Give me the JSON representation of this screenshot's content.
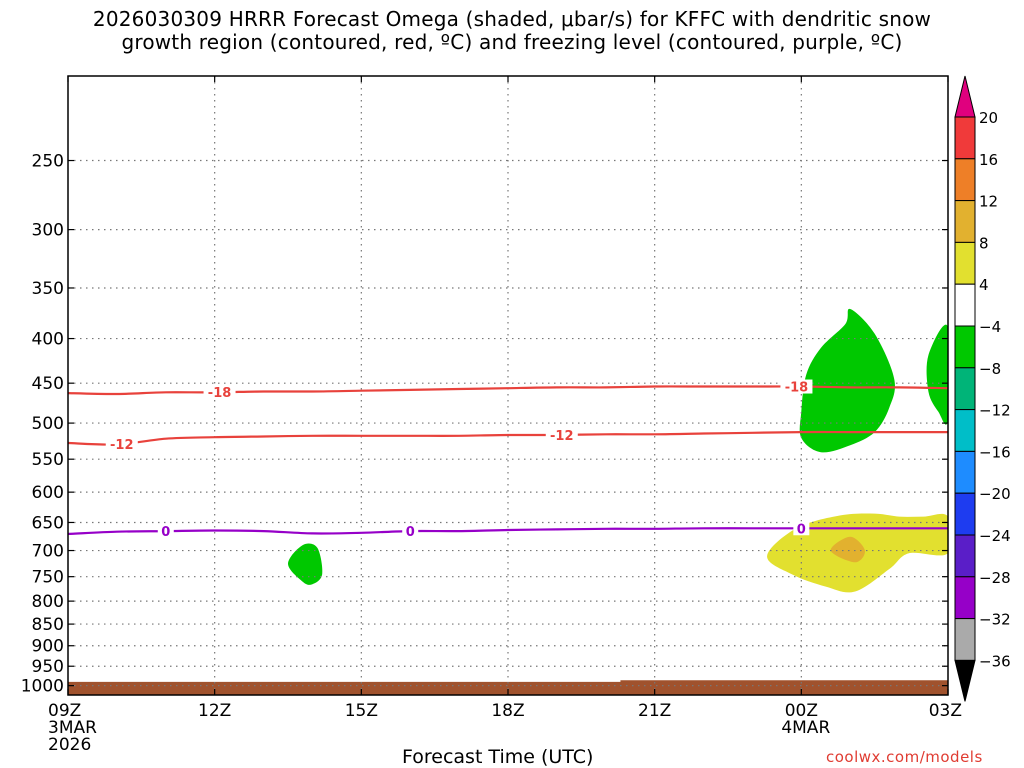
{
  "title_lines": [
    "2026030309 HRRR Forecast Omega (shaded, μbar/s) for KFFC with dendritic snow",
    "growth region (contoured, red, ºC) and freezing level (contoured, purple, ºC)"
  ],
  "credit": "coolwx.com/models",
  "chart_data": {
    "type": "time-height cross-section",
    "xlabel": "Forecast Time (UTC)",
    "x_range_hours": [
      0,
      18
    ],
    "x_ticks": [
      {
        "hour": 0,
        "label": "09Z",
        "sub": [
          "3MAR",
          "2026"
        ]
      },
      {
        "hour": 3,
        "label": "12Z",
        "sub": []
      },
      {
        "hour": 6,
        "label": "15Z",
        "sub": []
      },
      {
        "hour": 9,
        "label": "18Z",
        "sub": []
      },
      {
        "hour": 12,
        "label": "21Z",
        "sub": []
      },
      {
        "hour": 15,
        "label": "00Z",
        "sub": [
          "4MAR"
        ]
      },
      {
        "hour": 18,
        "label": "03Z",
        "sub": []
      }
    ],
    "y_scale": "log-pressure",
    "y_range_hpa": [
      200,
      1025
    ],
    "y_ticks": [
      250,
      300,
      350,
      400,
      450,
      500,
      550,
      600,
      650,
      700,
      750,
      800,
      850,
      900,
      950,
      1000
    ],
    "grid": true,
    "colorbar": {
      "levels": [
        20,
        16,
        12,
        8,
        4,
        -4,
        -8,
        -12,
        -16,
        -20,
        -24,
        -28,
        -32,
        -36
      ],
      "colors": [
        "#e0007e",
        "#f03a3a",
        "#ee7f27",
        "#e2b12f",
        "#e2e02f",
        "#ffffff",
        "#00c800",
        "#00b478",
        "#00bec8",
        "#1e8cff",
        "#1e3cf0",
        "#5a1ec8",
        "#9600c8",
        "#aaaaaa",
        "#000000"
      ]
    },
    "contours": [
      {
        "value": "-18",
        "color": "#e8423c",
        "points": [
          [
            0,
            462
          ],
          [
            1,
            463
          ],
          [
            2,
            461
          ],
          [
            3,
            461
          ],
          [
            4,
            460
          ],
          [
            5,
            460
          ],
          [
            6,
            459
          ],
          [
            7,
            458
          ],
          [
            8,
            457
          ],
          [
            9,
            456
          ],
          [
            10,
            455
          ],
          [
            11,
            455
          ],
          [
            12,
            454
          ],
          [
            13,
            454
          ],
          [
            14,
            454
          ],
          [
            15,
            454
          ],
          [
            16,
            455
          ],
          [
            17,
            455
          ],
          [
            18,
            456
          ]
        ],
        "labels_at_hour": [
          3.1,
          14.9
        ]
      },
      {
        "value": "-12",
        "color": "#e8423c",
        "points": [
          [
            0,
            527
          ],
          [
            1,
            529
          ],
          [
            2,
            521
          ],
          [
            3,
            519
          ],
          [
            4,
            518
          ],
          [
            5,
            517
          ],
          [
            6,
            517
          ],
          [
            7,
            517
          ],
          [
            8,
            517
          ],
          [
            9,
            516
          ],
          [
            10,
            516
          ],
          [
            11,
            515
          ],
          [
            12,
            515
          ],
          [
            13,
            514
          ],
          [
            14,
            513
          ],
          [
            15,
            512
          ],
          [
            16,
            512
          ],
          [
            17,
            512
          ],
          [
            18,
            512
          ]
        ],
        "labels_at_hour": [
          1.1,
          10.1
        ]
      },
      {
        "value": "0",
        "color": "#9600c8",
        "points": [
          [
            0,
            670
          ],
          [
            1,
            666
          ],
          [
            2,
            665
          ],
          [
            3,
            664
          ],
          [
            4,
            665
          ],
          [
            5,
            669
          ],
          [
            6,
            668
          ],
          [
            7,
            665
          ],
          [
            8,
            665
          ],
          [
            9,
            663
          ],
          [
            10,
            662
          ],
          [
            11,
            661
          ],
          [
            12,
            661
          ],
          [
            13,
            660
          ],
          [
            14,
            660
          ],
          [
            15,
            660
          ],
          [
            16,
            660
          ],
          [
            17,
            660
          ],
          [
            18,
            660
          ]
        ],
        "labels_at_hour": [
          2.0,
          7.0,
          15.0
        ]
      }
    ],
    "shaded_regions": [
      {
        "omega": "-4 to -8",
        "color": "#00c800",
        "points": [
          [
            4.5,
            725
          ],
          [
            4.8,
            690
          ],
          [
            5.1,
            695
          ],
          [
            5.2,
            745
          ],
          [
            5.0,
            765
          ],
          [
            4.8,
            760
          ]
        ]
      },
      {
        "omega": "-4 to -8",
        "color": "#00c800",
        "points": [
          [
            15.0,
            485
          ],
          [
            15.1,
            440
          ],
          [
            15.4,
            410
          ],
          [
            15.9,
            385
          ],
          [
            16.0,
            370
          ],
          [
            16.5,
            395
          ],
          [
            16.9,
            445
          ],
          [
            16.8,
            480
          ],
          [
            16.5,
            512
          ],
          [
            16.0,
            530
          ],
          [
            15.4,
            540
          ],
          [
            15.0,
            520
          ]
        ]
      },
      {
        "omega": "-4 to -8",
        "color": "#00c800",
        "points": [
          [
            18.0,
            388
          ],
          [
            17.6,
            418
          ],
          [
            17.6,
            460
          ],
          [
            17.8,
            485
          ],
          [
            18.0,
            495
          ]
        ]
      },
      {
        "omega": "4 to 8",
        "color": "#e2e02f",
        "points": [
          [
            14.3,
            710
          ],
          [
            14.9,
            660
          ],
          [
            15.8,
            638
          ],
          [
            16.5,
            635
          ],
          [
            17.0,
            640
          ],
          [
            17.5,
            640
          ],
          [
            18.0,
            640
          ],
          [
            18.0,
            705
          ],
          [
            17.2,
            705
          ],
          [
            16.8,
            735
          ],
          [
            16.1,
            780
          ],
          [
            15.5,
            770
          ],
          [
            14.8,
            745
          ]
        ]
      },
      {
        "omega": "8 to 12",
        "color": "#e2b12f",
        "points": [
          [
            15.6,
            700
          ],
          [
            16.0,
            675
          ],
          [
            16.3,
            700
          ],
          [
            16.1,
            722
          ]
        ]
      }
    ],
    "terrain": {
      "color": "#a0522d",
      "top_hpa": 990,
      "bump_from_hour": 11.3,
      "bump_top_hpa": 986
    }
  }
}
